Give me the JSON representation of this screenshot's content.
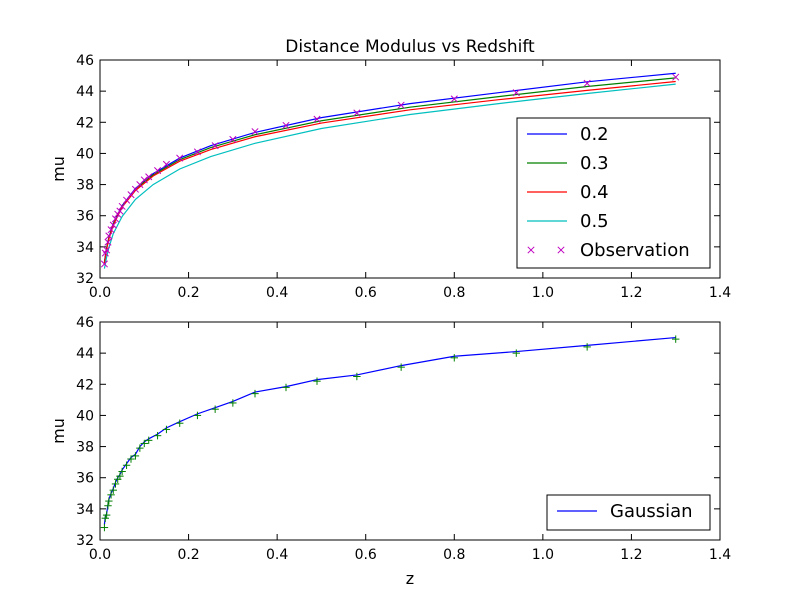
{
  "chart_data": [
    {
      "type": "line",
      "title": "Distance Modulus vs Redshift",
      "xlabel": "",
      "ylabel": "mu",
      "xlim": [
        0,
        1.4
      ],
      "ylim": [
        32,
        46
      ],
      "xticks": [
        "0.0",
        "0.2",
        "0.4",
        "0.6",
        "0.8",
        "1.0",
        "1.2",
        "1.4"
      ],
      "yticks": [
        "32",
        "34",
        "36",
        "38",
        "40",
        "42",
        "44",
        "46"
      ],
      "grid": false,
      "legend_position": "lower-right",
      "series": [
        {
          "name": "0.2",
          "kind": "line",
          "color": "#0000ff",
          "x": [
            0.01,
            0.015,
            0.02,
            0.03,
            0.05,
            0.08,
            0.12,
            0.18,
            0.25,
            0.35,
            0.5,
            0.7,
            0.9,
            1.1,
            1.3
          ],
          "y": [
            33.05,
            33.95,
            34.6,
            35.5,
            36.65,
            37.75,
            38.7,
            39.7,
            40.5,
            41.35,
            42.3,
            43.2,
            43.9,
            44.6,
            45.15
          ]
        },
        {
          "name": "0.3",
          "kind": "line",
          "color": "#008000",
          "x": [
            0.01,
            0.015,
            0.02,
            0.03,
            0.05,
            0.08,
            0.12,
            0.18,
            0.25,
            0.35,
            0.5,
            0.7,
            0.9,
            1.1,
            1.3
          ],
          "y": [
            33.0,
            33.9,
            34.55,
            35.45,
            36.6,
            37.7,
            38.62,
            39.6,
            40.38,
            41.2,
            42.1,
            42.97,
            43.65,
            44.3,
            44.85
          ]
        },
        {
          "name": "0.4",
          "kind": "line",
          "color": "#ff0000",
          "x": [
            0.01,
            0.015,
            0.02,
            0.03,
            0.05,
            0.08,
            0.12,
            0.18,
            0.25,
            0.35,
            0.5,
            0.7,
            0.9,
            1.1,
            1.3
          ],
          "y": [
            32.95,
            33.85,
            34.5,
            35.4,
            36.55,
            37.62,
            38.55,
            39.5,
            40.25,
            41.07,
            41.95,
            42.8,
            43.45,
            44.05,
            44.62
          ]
        },
        {
          "name": "0.5",
          "kind": "line",
          "color": "#00bfbf",
          "x": [
            0.01,
            0.015,
            0.02,
            0.03,
            0.05,
            0.08,
            0.12,
            0.18,
            0.25,
            0.35,
            0.5,
            0.7,
            0.9,
            1.1,
            1.3
          ],
          "y": [
            32.6,
            33.35,
            33.95,
            34.85,
            35.95,
            37.05,
            38.0,
            39.0,
            39.8,
            40.65,
            41.6,
            42.5,
            43.2,
            43.85,
            44.45
          ]
        },
        {
          "name": "Observation",
          "kind": "marker",
          "marker": "x",
          "color": "#bf00bf",
          "x": [
            0.01,
            0.012,
            0.015,
            0.018,
            0.02,
            0.025,
            0.03,
            0.035,
            0.04,
            0.045,
            0.05,
            0.06,
            0.07,
            0.08,
            0.09,
            0.1,
            0.11,
            0.13,
            0.15,
            0.18,
            0.22,
            0.26,
            0.3,
            0.35,
            0.42,
            0.49,
            0.58,
            0.68,
            0.8,
            0.94,
            1.1,
            1.3
          ],
          "y": [
            32.9,
            33.6,
            33.8,
            34.3,
            34.7,
            35.1,
            35.4,
            35.8,
            36.1,
            36.3,
            36.6,
            37.0,
            37.35,
            37.7,
            38.0,
            38.3,
            38.5,
            38.9,
            39.3,
            39.7,
            40.1,
            40.5,
            40.9,
            41.4,
            41.8,
            42.2,
            42.6,
            43.1,
            43.5,
            43.9,
            44.5,
            44.9
          ]
        }
      ],
      "legend": [
        "0.2",
        "0.3",
        "0.4",
        "0.5",
        "Observation"
      ]
    },
    {
      "type": "line",
      "title": "",
      "xlabel": "z",
      "ylabel": "mu",
      "xlim": [
        0,
        1.4
      ],
      "ylim": [
        32,
        46
      ],
      "xticks": [
        "0.0",
        "0.2",
        "0.4",
        "0.6",
        "0.8",
        "1.0",
        "1.2",
        "1.4"
      ],
      "yticks": [
        "32",
        "34",
        "36",
        "38",
        "40",
        "42",
        "44",
        "46"
      ],
      "grid": false,
      "legend_position": "lower-right",
      "series": [
        {
          "name": "Gaussian",
          "kind": "line",
          "color": "#0000ff",
          "x": [
            0.01,
            0.012,
            0.015,
            0.018,
            0.02,
            0.025,
            0.03,
            0.035,
            0.04,
            0.045,
            0.05,
            0.06,
            0.07,
            0.08,
            0.09,
            0.1,
            0.11,
            0.13,
            0.15,
            0.18,
            0.22,
            0.26,
            0.3,
            0.35,
            0.42,
            0.49,
            0.58,
            0.68,
            0.8,
            0.94,
            1.1,
            1.3
          ],
          "y": [
            33.0,
            33.5,
            33.7,
            34.3,
            34.6,
            35.0,
            35.3,
            35.7,
            36.0,
            36.2,
            36.5,
            36.9,
            37.3,
            37.5,
            38.0,
            38.3,
            38.5,
            38.8,
            39.2,
            39.6,
            40.1,
            40.5,
            40.9,
            41.5,
            41.85,
            42.3,
            42.6,
            43.2,
            43.8,
            44.1,
            44.5,
            45.0
          ]
        },
        {
          "name": "",
          "kind": "marker",
          "marker": "+",
          "color": "#008000",
          "x": [
            0.01,
            0.012,
            0.015,
            0.018,
            0.02,
            0.025,
            0.03,
            0.035,
            0.04,
            0.045,
            0.05,
            0.06,
            0.07,
            0.08,
            0.09,
            0.1,
            0.11,
            0.13,
            0.15,
            0.18,
            0.22,
            0.26,
            0.3,
            0.35,
            0.42,
            0.49,
            0.58,
            0.68,
            0.8,
            0.94,
            1.1,
            1.3
          ],
          "y": [
            32.8,
            33.4,
            33.6,
            34.2,
            34.5,
            34.9,
            35.2,
            35.6,
            35.9,
            36.1,
            36.4,
            36.8,
            37.2,
            37.4,
            37.9,
            38.2,
            38.4,
            38.7,
            39.1,
            39.5,
            40.0,
            40.4,
            40.8,
            41.4,
            41.8,
            42.2,
            42.5,
            43.1,
            43.7,
            44.0,
            44.4,
            44.9
          ]
        }
      ],
      "legend": [
        "Gaussian"
      ]
    }
  ]
}
